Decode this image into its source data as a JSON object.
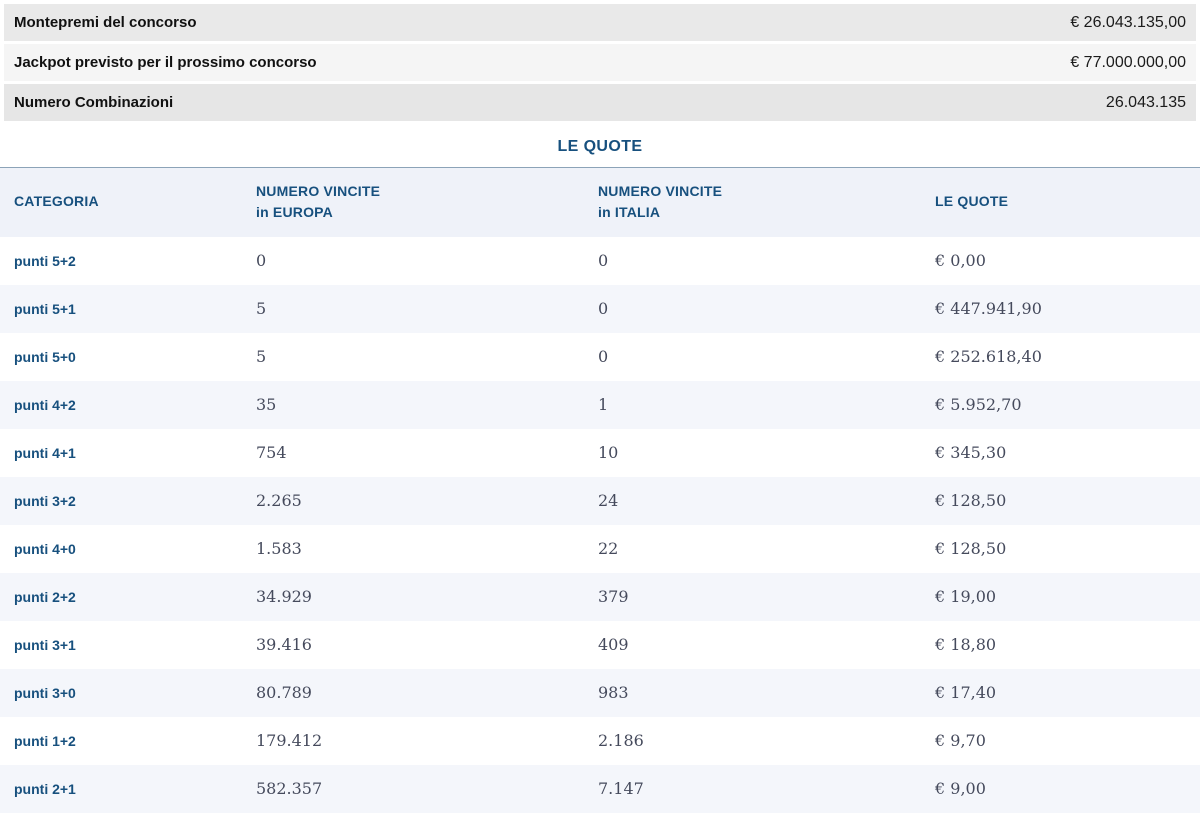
{
  "summary": {
    "rows": [
      {
        "label": "Montepremi del concorso",
        "value": "€ 26.043.135,00"
      },
      {
        "label": "Jackpot previsto per il prossimo concorso",
        "value": "€ 77.000.000,00"
      },
      {
        "label": "Numero Combinazioni",
        "value": "26.043.135"
      }
    ]
  },
  "section_title": "LE QUOTE",
  "table": {
    "columns": [
      {
        "line1": "CATEGORIA",
        "line2": ""
      },
      {
        "line1": "NUMERO VINCITE",
        "line2": "in EUROPA"
      },
      {
        "line1": "NUMERO VINCITE",
        "line2": "in ITALIA"
      },
      {
        "line1": "LE QUOTE",
        "line2": ""
      }
    ],
    "rows": [
      {
        "categoria": "punti 5+2",
        "europa": "0",
        "italia": "0",
        "quota": "€ 0,00"
      },
      {
        "categoria": "punti 5+1",
        "europa": "5",
        "italia": "0",
        "quota": "€ 447.941,90"
      },
      {
        "categoria": "punti 5+0",
        "europa": "5",
        "italia": "0",
        "quota": "€ 252.618,40"
      },
      {
        "categoria": "punti 4+2",
        "europa": "35",
        "italia": "1",
        "quota": "€ 5.952,70"
      },
      {
        "categoria": "punti 4+1",
        "europa": "754",
        "italia": "10",
        "quota": "€ 345,30"
      },
      {
        "categoria": "punti 3+2",
        "europa": "2.265",
        "italia": "24",
        "quota": "€ 128,50"
      },
      {
        "categoria": "punti 4+0",
        "europa": "1.583",
        "italia": "22",
        "quota": "€ 128,50"
      },
      {
        "categoria": "punti 2+2",
        "europa": "34.929",
        "italia": "379",
        "quota": "€ 19,00"
      },
      {
        "categoria": "punti 3+1",
        "europa": "39.416",
        "italia": "409",
        "quota": "€ 18,80"
      },
      {
        "categoria": "punti 3+0",
        "europa": "80.789",
        "italia": "983",
        "quota": "€ 17,40"
      },
      {
        "categoria": "punti 1+2",
        "europa": "179.412",
        "italia": "2.186",
        "quota": "€ 9,70"
      },
      {
        "categoria": "punti 2+1",
        "europa": "582.357",
        "italia": "7.147",
        "quota": "€ 9,00"
      }
    ]
  },
  "colors": {
    "accent_blue": "#17507e",
    "number_text": "#454a5c",
    "zebra_row": "#f4f6fb",
    "table_header_bg": "#eff2f9",
    "table_top_border": "#8ca3b8",
    "summary_grey_1": "#e9e9e9",
    "summary_grey_2": "#f5f5f5",
    "summary_grey_3": "#e6e6e6"
  }
}
